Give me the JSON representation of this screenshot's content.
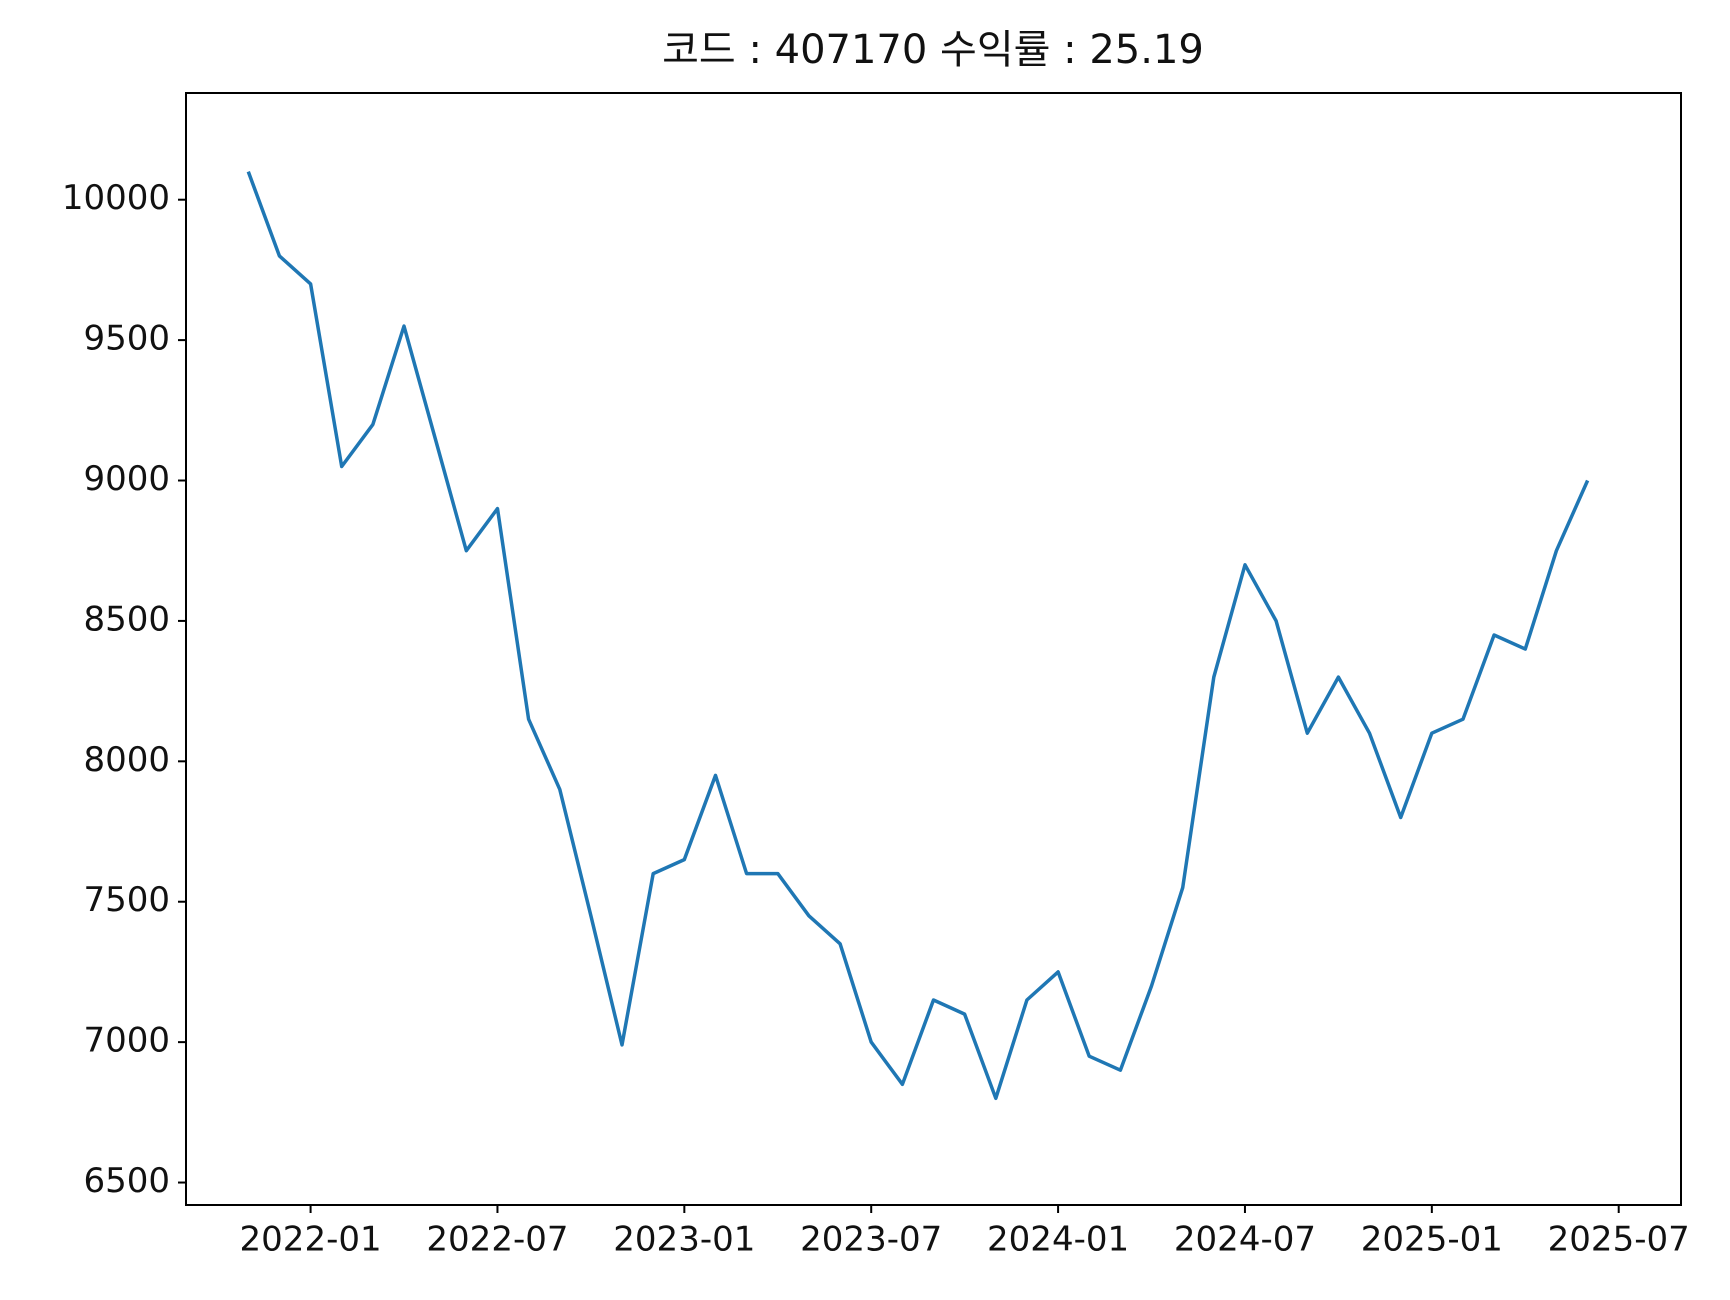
{
  "chart_data": {
    "type": "line",
    "title": "코드 : 407170 수익률 : 25.19",
    "x": [
      "2021-11",
      "2021-12",
      "2022-01",
      "2022-02",
      "2022-03",
      "2022-04",
      "2022-05",
      "2022-06",
      "2022-07",
      "2022-08",
      "2022-09",
      "2022-10",
      "2022-11",
      "2022-12",
      "2023-01",
      "2023-02",
      "2023-03",
      "2023-04",
      "2023-05",
      "2023-06",
      "2023-07",
      "2023-08",
      "2023-09",
      "2023-10",
      "2023-11",
      "2023-12",
      "2024-01",
      "2024-02",
      "2024-03",
      "2024-04",
      "2024-05",
      "2024-06",
      "2024-07",
      "2024-08",
      "2024-09",
      "2024-10",
      "2024-11",
      "2024-12",
      "2025-01",
      "2025-02",
      "2025-03",
      "2025-04",
      "2025-05",
      "2025-06"
    ],
    "series": [
      {
        "color": "#1f77b4",
        "values": [
          10100,
          9800,
          9700,
          9050,
          9200,
          9550,
          9150,
          8750,
          8900,
          8150,
          7900,
          7450,
          6990,
          7600,
          7650,
          7950,
          7600,
          7600,
          7450,
          7350,
          7000,
          6850,
          7150,
          7100,
          6800,
          7150,
          7250,
          6950,
          6900,
          7200,
          7550,
          8300,
          8700,
          8500,
          8100,
          8300,
          8100,
          7800,
          8100,
          8150,
          8450,
          8400,
          8750,
          9000
        ]
      }
    ],
    "xlim": [
      "2021-09",
      "2025-09"
    ],
    "xticks": [
      "2022-01",
      "2022-07",
      "2023-01",
      "2023-07",
      "2024-01",
      "2024-07",
      "2025-01",
      "2025-07"
    ],
    "ylim": [
      6420,
      10380
    ],
    "yticks": [
      6500,
      7000,
      7500,
      8000,
      8500,
      9000,
      9500,
      10000
    ],
    "grid": false
  }
}
